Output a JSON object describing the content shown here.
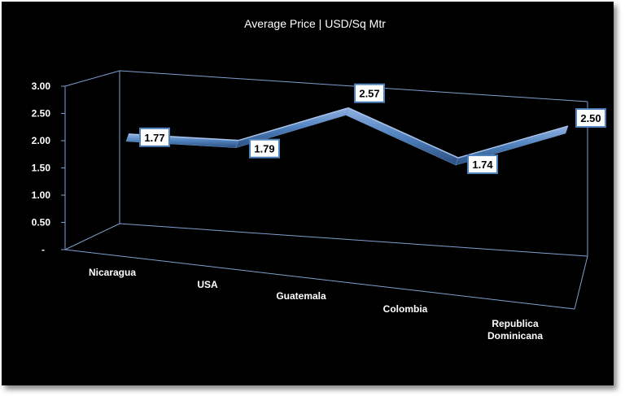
{
  "chart_data": {
    "type": "line",
    "title": "Average Price | USD/Sq Mtr",
    "categories": [
      "Nicaragua",
      "USA",
      "Guatemala",
      "Colombia",
      "Republica Dominicana"
    ],
    "category_lines": [
      [
        "Nicaragua"
      ],
      [
        "USA"
      ],
      [
        "Guatemala"
      ],
      [
        "Colombia"
      ],
      [
        "Republica",
        "Dominicana"
      ]
    ],
    "series": [
      {
        "values": [
          1.77,
          1.79,
          2.57,
          1.74,
          2.5
        ]
      }
    ],
    "data_labels": [
      "1.77",
      "1.79",
      "2.57",
      "1.74",
      "2.50"
    ],
    "y_ticks": [
      "-",
      "0.50",
      "1.00",
      "1.50",
      "2.00",
      "2.50",
      "3.00"
    ],
    "y_tick_values": [
      0,
      0.5,
      1.0,
      1.5,
      2.0,
      2.5,
      3.0
    ],
    "ylim": [
      0,
      3.0
    ],
    "xlabel": "",
    "ylabel": "",
    "grid": false,
    "legend": "none",
    "colors": {
      "background": "#000000",
      "series": "#4f81bd",
      "text": "#ffffff",
      "axis": "#7f9fcf"
    }
  }
}
